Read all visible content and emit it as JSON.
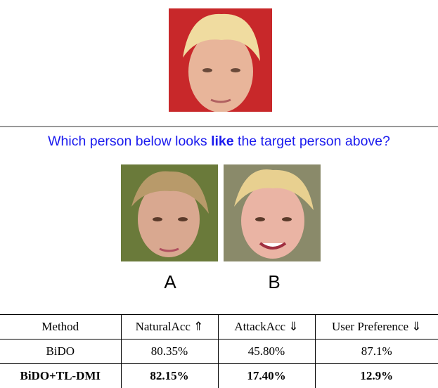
{
  "question": {
    "before": "Which person below looks ",
    "emphasis": "like",
    "after": " the target person above?"
  },
  "choices": [
    "A",
    "B"
  ],
  "table": {
    "header": [
      "Method",
      "NaturalAcc ⇑",
      "AttackAcc ⇓",
      "User Preference ⇓"
    ],
    "rows": [
      [
        "BiDO",
        "80.35%",
        "45.80%",
        "87.1%"
      ],
      [
        "BiDO+TL-DMI",
        "82.15%",
        "17.40%",
        "12.9%"
      ]
    ]
  }
}
